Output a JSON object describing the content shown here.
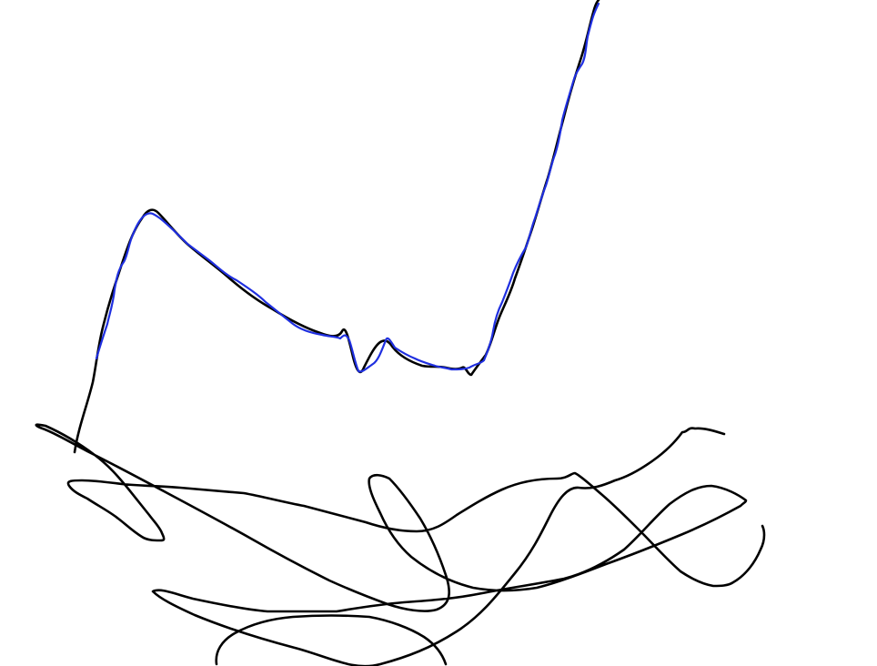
{
  "canvas": {
    "background": "#ffffff"
  },
  "strokes": {
    "black_color": "#000000",
    "blue_color": "#1f2fe0"
  }
}
